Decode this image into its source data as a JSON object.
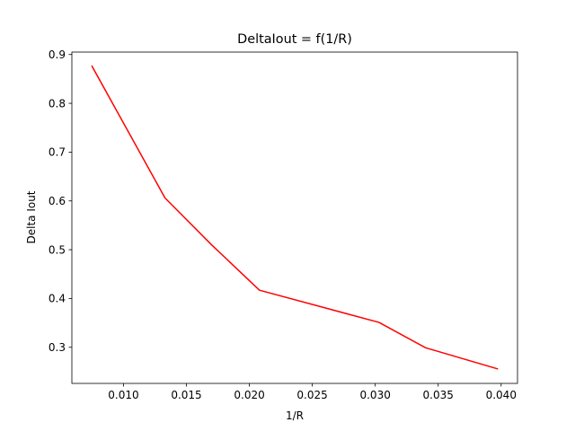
{
  "chart_data": {
    "type": "line",
    "title": "DeltaIout = f(1/R)",
    "xlabel": "1/R",
    "ylabel": "Delta Iout",
    "xlim": [
      0.0059,
      0.0413
    ],
    "ylim": [
      0.226,
      0.905
    ],
    "xticks": [
      0.01,
      0.015,
      0.02,
      0.025,
      0.03,
      0.035,
      0.04
    ],
    "xtick_labels": [
      "0.010",
      "0.015",
      "0.020",
      "0.025",
      "0.030",
      "0.035",
      "0.040"
    ],
    "yticks": [
      0.3,
      0.4,
      0.5,
      0.6,
      0.7,
      0.8,
      0.9
    ],
    "ytick_labels": [
      "0.3",
      "0.4",
      "0.5",
      "0.6",
      "0.7",
      "0.8",
      "0.9"
    ],
    "grid": false,
    "series": [
      {
        "color": "#ff0000",
        "x": [
          0.0075,
          0.0133,
          0.017,
          0.0208,
          0.0303,
          0.034,
          0.0397
        ],
        "y": [
          0.876,
          0.606,
          0.51,
          0.417,
          0.351,
          0.299,
          0.256
        ]
      }
    ]
  }
}
